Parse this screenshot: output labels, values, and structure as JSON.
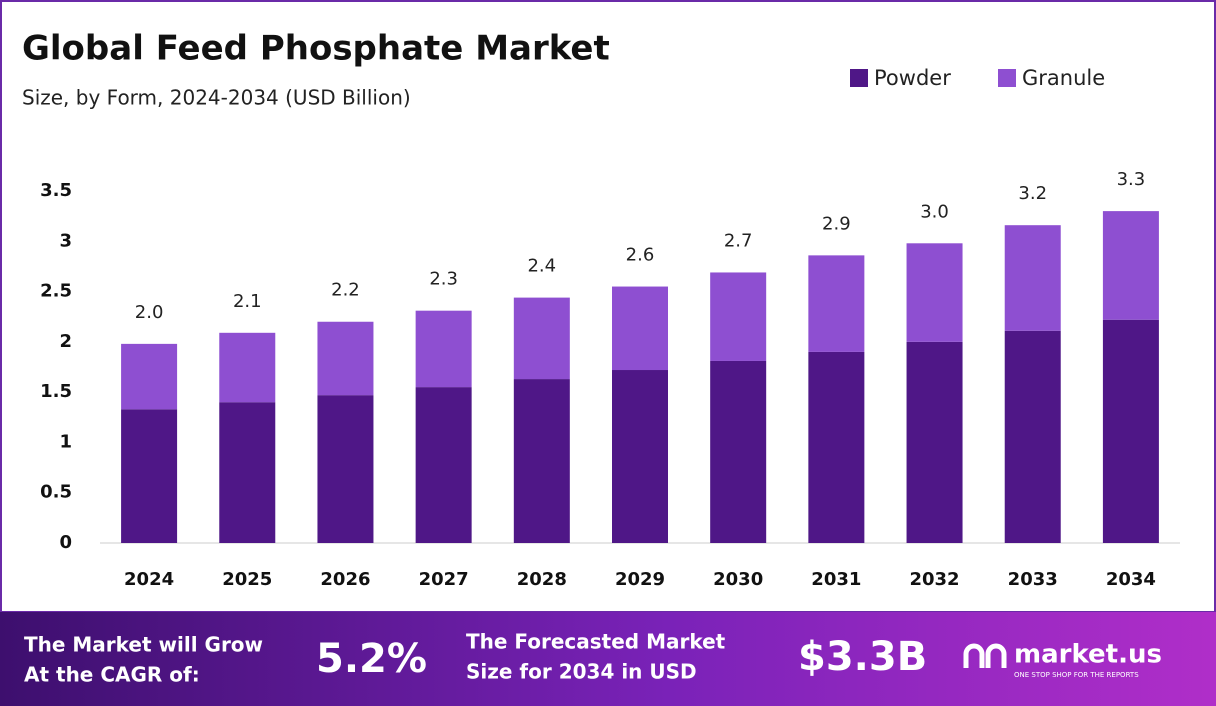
{
  "chart_data": {
    "type": "stacked-bar",
    "title": "Global Feed Phosphate Market",
    "subtitle": "Size, by Form, 2024-2034 (USD Billion)",
    "categories": [
      "2024",
      "2025",
      "2026",
      "2027",
      "2028",
      "2029",
      "2030",
      "2031",
      "2032",
      "2033",
      "2034"
    ],
    "series": [
      {
        "name": "Powder",
        "color": "#4f1787",
        "values": [
          1.33,
          1.4,
          1.47,
          1.55,
          1.63,
          1.72,
          1.81,
          1.9,
          2.0,
          2.11,
          2.22
        ]
      },
      {
        "name": "Granule",
        "color": "#8e4fd1",
        "values": [
          0.65,
          0.69,
          0.73,
          0.76,
          0.81,
          0.83,
          0.88,
          0.96,
          0.98,
          1.05,
          1.08
        ]
      }
    ],
    "total_labels": [
      "2.0",
      "2.1",
      "2.2",
      "2.3",
      "2.4",
      "2.6",
      "2.7",
      "2.9",
      "3.0",
      "3.2",
      "3.3"
    ],
    "ylim": [
      0,
      3.5
    ],
    "yticks": [
      0,
      0.5,
      1,
      1.5,
      2,
      2.5,
      3,
      3.5
    ],
    "grid": false,
    "legend": "top-right"
  },
  "footer": {
    "cagr_text": [
      "The Market will Grow",
      "At the CAGR of:"
    ],
    "cagr_value": "5.2%",
    "forecast_text": [
      "The Forecasted Market",
      "Size for 2034 in USD"
    ],
    "forecast_value": "$3.3B",
    "brand": "market.us",
    "tagline": "ONE STOP SHOP FOR THE REPORTS"
  }
}
